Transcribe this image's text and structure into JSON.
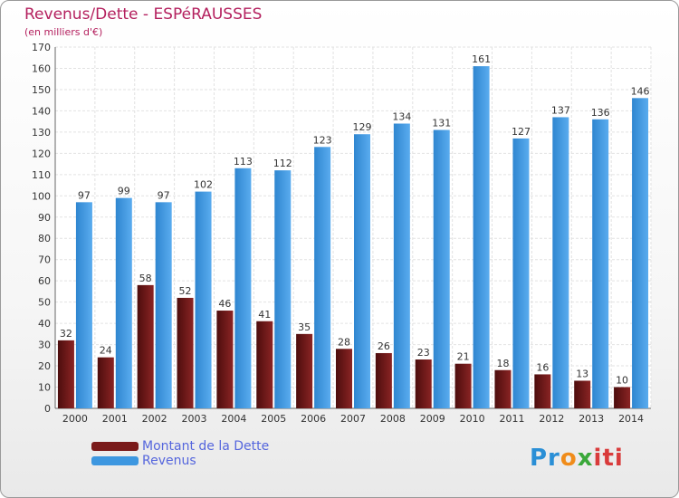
{
  "title": "Revenus/Dette - ESPéRAUSSES",
  "subtitle": "(en milliers d'€)",
  "chart_data": {
    "type": "bar",
    "categories": [
      "2000",
      "2001",
      "2002",
      "2003",
      "2004",
      "2005",
      "2006",
      "2007",
      "2008",
      "2009",
      "2010",
      "2011",
      "2012",
      "2013",
      "2014"
    ],
    "series": [
      {
        "name": "Montant de la Dette",
        "color": "#7a1a1a",
        "values": [
          32,
          24,
          58,
          52,
          46,
          41,
          35,
          28,
          26,
          23,
          21,
          18,
          16,
          13,
          10
        ]
      },
      {
        "name": "Revenus",
        "color": "#3d97e0",
        "values": [
          97,
          99,
          97,
          102,
          113,
          112,
          123,
          129,
          134,
          131,
          161,
          127,
          137,
          136,
          146
        ]
      }
    ],
    "ylim": [
      0,
      170
    ],
    "yticks": [
      0,
      10,
      20,
      30,
      40,
      50,
      60,
      70,
      80,
      90,
      100,
      110,
      120,
      130,
      140,
      150,
      160,
      170
    ],
    "grid": true,
    "legend": "bottom-left"
  },
  "logo": {
    "text": "Proxiti",
    "parts": [
      "Pr",
      "o",
      "x",
      "iti"
    ]
  }
}
